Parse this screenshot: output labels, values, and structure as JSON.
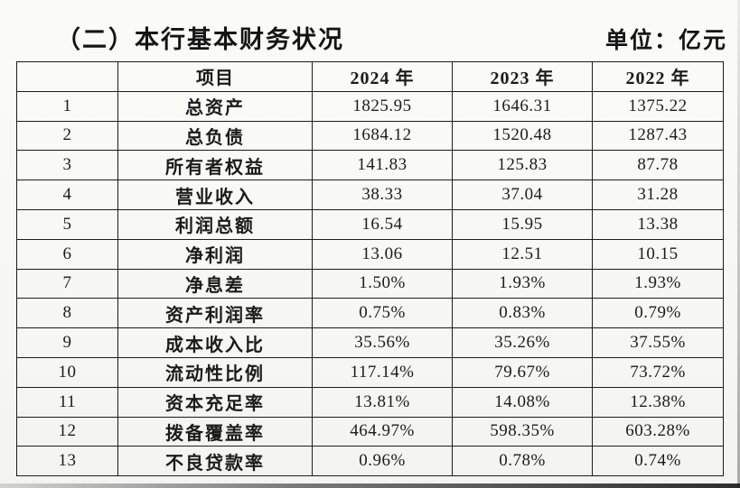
{
  "page": {
    "title": "（二）本行基本财务状况",
    "unit_label": "单位：亿元"
  },
  "table": {
    "headers": [
      "",
      "项目",
      "2024 年",
      "2023 年",
      "2022 年"
    ],
    "rows": [
      {
        "no": "1",
        "item": "总资产",
        "y2024": "1825.95",
        "y2023": "1646.31",
        "y2022": "1375.22"
      },
      {
        "no": "2",
        "item": "总负债",
        "y2024": "1684.12",
        "y2023": "1520.48",
        "y2022": "1287.43"
      },
      {
        "no": "3",
        "item": "所有者权益",
        "y2024": "141.83",
        "y2023": "125.83",
        "y2022": "87.78"
      },
      {
        "no": "4",
        "item": "营业收入",
        "y2024": "38.33",
        "y2023": "37.04",
        "y2022": "31.28"
      },
      {
        "no": "5",
        "item": "利润总额",
        "y2024": "16.54",
        "y2023": "15.95",
        "y2022": "13.38"
      },
      {
        "no": "6",
        "item": "净利润",
        "y2024": "13.06",
        "y2023": "12.51",
        "y2022": "10.15"
      },
      {
        "no": "7",
        "item": "净息差",
        "y2024": "1.50%",
        "y2023": "1.93%",
        "y2022": "1.93%"
      },
      {
        "no": "8",
        "item": "资产利润率",
        "y2024": "0.75%",
        "y2023": "0.83%",
        "y2022": "0.79%"
      },
      {
        "no": "9",
        "item": "成本收入比",
        "y2024": "35.56%",
        "y2023": "35.26%",
        "y2022": "37.55%"
      },
      {
        "no": "10",
        "item": "流动性比例",
        "y2024": "117.14%",
        "y2023": "79.67%",
        "y2022": "73.72%"
      },
      {
        "no": "11",
        "item": "资本充足率",
        "y2024": "13.81%",
        "y2023": "14.08%",
        "y2022": "12.38%"
      },
      {
        "no": "12",
        "item": "拨备覆盖率",
        "y2024": "464.97%",
        "y2023": "598.35%",
        "y2022": "603.28%"
      },
      {
        "no": "13",
        "item": "不良贷款率",
        "y2024": "0.96%",
        "y2023": "0.78%",
        "y2022": "0.74%"
      }
    ]
  }
}
